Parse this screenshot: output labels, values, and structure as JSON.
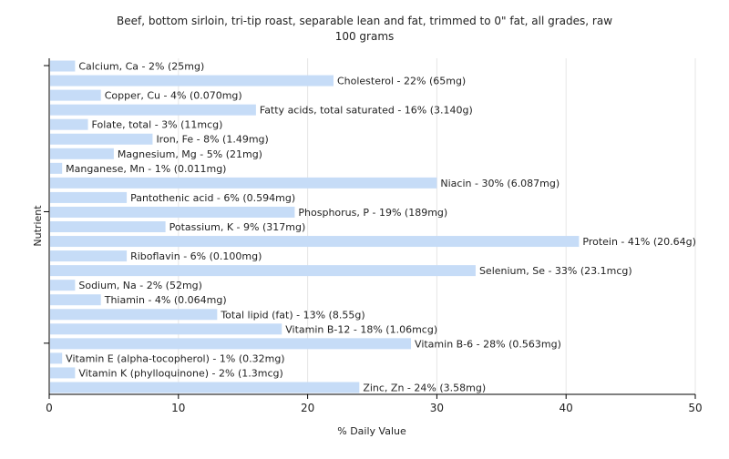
{
  "chart_data": {
    "type": "bar",
    "orientation": "horizontal",
    "title": "Beef, bottom sirloin, tri-tip roast, separable lean and fat, trimmed to 0\" fat, all grades, raw",
    "subtitle": "100 grams",
    "xlabel": "% Daily Value",
    "ylabel": "Nutrient",
    "xlim": [
      0,
      50
    ],
    "xticks": [
      "0",
      "10",
      "20",
      "30",
      "40",
      "50"
    ],
    "grid": true,
    "bar_color": "#c6dcf7",
    "categories": [
      "Calcium, Ca",
      "Cholesterol",
      "Copper, Cu",
      "Fatty acids, total saturated",
      "Folate, total",
      "Iron, Fe",
      "Magnesium, Mg",
      "Manganese, Mn",
      "Niacin",
      "Pantothenic acid",
      "Phosphorus, P",
      "Potassium, K",
      "Protein",
      "Riboflavin",
      "Selenium, Se",
      "Sodium, Na",
      "Thiamin",
      "Total lipid (fat)",
      "Vitamin B-12",
      "Vitamin B-6",
      "Vitamin E (alpha-tocopherol)",
      "Vitamin K (phylloquinone)",
      "Zinc, Zn"
    ],
    "values": [
      2,
      22,
      4,
      16,
      3,
      8,
      5,
      1,
      30,
      6,
      19,
      9,
      41,
      6,
      33,
      2,
      4,
      13,
      18,
      28,
      1,
      2,
      24
    ],
    "labels": [
      "Calcium, Ca - 2% (25mg)",
      "Cholesterol - 22% (65mg)",
      "Copper, Cu - 4% (0.070mg)",
      "Fatty acids, total saturated - 16% (3.140g)",
      "Folate, total - 3% (11mcg)",
      "Iron, Fe - 8% (1.49mg)",
      "Magnesium, Mg - 5% (21mg)",
      "Manganese, Mn - 1% (0.011mg)",
      "Niacin - 30% (6.087mg)",
      "Pantothenic acid - 6% (0.594mg)",
      "Phosphorus, P - 19% (189mg)",
      "Potassium, K - 9% (317mg)",
      "Protein - 41% (20.64g)",
      "Riboflavin - 6% (0.100mg)",
      "Selenium, Se - 33% (23.1mcg)",
      "Sodium, Na - 2% (52mg)",
      "Thiamin - 4% (0.064mg)",
      "Total lipid (fat) - 13% (8.55g)",
      "Vitamin B-12 - 18% (1.06mcg)",
      "Vitamin B-6 - 28% (0.563mg)",
      "Vitamin E (alpha-tocopherol) - 1% (0.32mg)",
      "Vitamin K (phylloquinone) - 2% (1.3mcg)",
      "Zinc, Zn - 24% (3.58mg)"
    ]
  }
}
